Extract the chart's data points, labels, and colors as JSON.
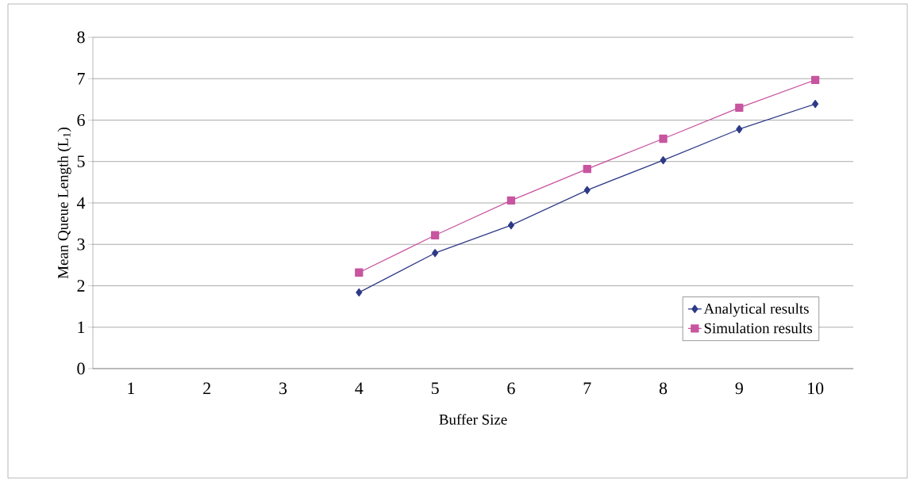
{
  "chart_data": {
    "type": "line",
    "xlabel": "Buffer Size",
    "ylabel": "Mean Queue Length (L$_{1}$)",
    "categories": [
      "1",
      "2",
      "3",
      "4",
      "5",
      "6",
      "7",
      "8",
      "9",
      "10"
    ],
    "series": [
      {
        "name": "Analytical results",
        "color": "#2e3a87",
        "marker": "diamond",
        "values": [
          null,
          null,
          null,
          1.84,
          2.79,
          3.46,
          4.31,
          5.03,
          5.78,
          6.39
        ]
      },
      {
        "name": "Simulation results",
        "color": "#c8559f",
        "marker": "square",
        "values": [
          null,
          null,
          null,
          2.32,
          3.22,
          4.06,
          4.82,
          5.55,
          6.3,
          6.97
        ]
      }
    ],
    "ylim": [
      0,
      8
    ],
    "yticks": [
      0,
      1,
      2,
      3,
      4,
      5,
      6,
      7,
      8
    ],
    "grid": "y",
    "legend": "bottom right",
    "line_style": "solid"
  }
}
